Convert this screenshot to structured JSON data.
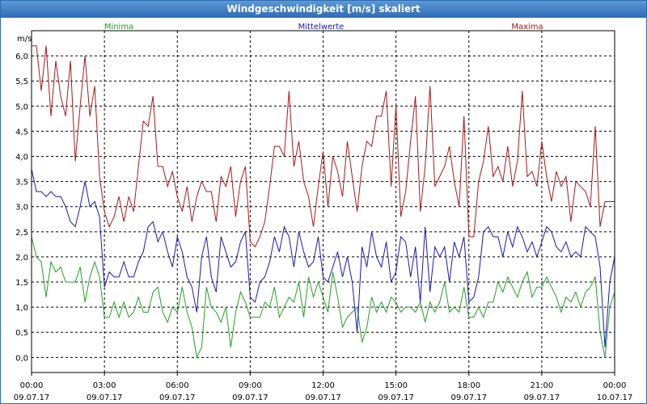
{
  "chart_data": {
    "type": "line",
    "title": "Windgeschwindigkeit [m/s] skaliert",
    "ylabel": "m/s",
    "ylim": [
      -0.3,
      6.5
    ],
    "grid": true,
    "y_ticks": [
      "0,0",
      "0,5",
      "1,0",
      "1,5",
      "2,0",
      "2,5",
      "3,0",
      "3,5",
      "4,0",
      "4,5",
      "5,0",
      "5,5",
      "6,0"
    ],
    "y_tick_values": [
      0.0,
      0.5,
      1.0,
      1.5,
      2.0,
      2.5,
      3.0,
      3.5,
      4.0,
      4.5,
      5.0,
      5.5,
      6.0
    ],
    "x_ticks_time": [
      "00:00",
      "03:00",
      "06:00",
      "09:00",
      "12:00",
      "15:00",
      "18:00",
      "21:00",
      "00:00"
    ],
    "x_ticks_date": [
      "09.07.17",
      "09.07.17",
      "09.07.17",
      "09.07.17",
      "09.07.17",
      "09.07.17",
      "09.07.17",
      "09.07.17",
      "10.07.17"
    ],
    "x_tick_hours": [
      0,
      3,
      6,
      9,
      12,
      15,
      18,
      21,
      24
    ],
    "xlim_hours": [
      0,
      24
    ],
    "series": [
      {
        "name": "Minima",
        "color": "#22a022",
        "hours": [
          0.0,
          0.2,
          0.4,
          0.6,
          0.8,
          1.0,
          1.2,
          1.4,
          1.6,
          1.8,
          2.0,
          2.2,
          2.4,
          2.6,
          2.8,
          3.0,
          3.2,
          3.4,
          3.6,
          3.8,
          4.0,
          4.2,
          4.4,
          4.6,
          4.8,
          5.0,
          5.2,
          5.4,
          5.6,
          5.8,
          6.0,
          6.2,
          6.4,
          6.6,
          6.8,
          7.0,
          7.2,
          7.4,
          7.6,
          7.8,
          8.0,
          8.2,
          8.4,
          8.6,
          8.8,
          9.0,
          9.2,
          9.4,
          9.6,
          9.8,
          10.0,
          10.2,
          10.4,
          10.6,
          10.8,
          11.0,
          11.2,
          11.4,
          11.6,
          11.8,
          12.0,
          12.2,
          12.4,
          12.6,
          12.8,
          13.0,
          13.2,
          13.4,
          13.6,
          13.8,
          14.0,
          14.2,
          14.4,
          14.6,
          14.8,
          15.0,
          15.2,
          15.4,
          15.6,
          15.8,
          16.0,
          16.2,
          16.4,
          16.6,
          16.8,
          17.0,
          17.2,
          17.4,
          17.6,
          17.8,
          18.0,
          18.2,
          18.4,
          18.6,
          18.8,
          19.0,
          19.2,
          19.4,
          19.6,
          19.8,
          20.0,
          20.2,
          20.4,
          20.6,
          20.8,
          21.0,
          21.2,
          21.4,
          21.6,
          21.8,
          22.0,
          22.2,
          22.4,
          22.6,
          22.8,
          23.0,
          23.2,
          23.4,
          23.6,
          23.8,
          24.0
        ],
        "values": [
          2.4,
          2.0,
          1.9,
          1.2,
          1.9,
          1.7,
          1.8,
          1.5,
          1.5,
          1.5,
          1.8,
          1.1,
          1.6,
          1.9,
          1.6,
          0.8,
          0.8,
          1.1,
          0.8,
          1.1,
          0.8,
          0.9,
          1.2,
          0.9,
          0.9,
          1.3,
          1.4,
          0.9,
          0.7,
          1.0,
          0.9,
          1.4,
          0.9,
          0.6,
          0.0,
          0.2,
          1.4,
          1.0,
          0.9,
          0.7,
          1.0,
          0.2,
          0.9,
          1.3,
          1.1,
          0.8,
          0.8,
          0.8,
          1.1,
          1.0,
          1.4,
          0.8,
          1.0,
          1.2,
          1.1,
          1.5,
          0.8,
          1.6,
          1.2,
          1.5,
          1.2,
          0.9,
          1.7,
          1.2,
          0.6,
          0.8,
          0.9,
          1.0,
          0.3,
          0.6,
          1.2,
          0.9,
          1.1,
          0.9,
          1.2,
          1.1,
          0.9,
          1.0,
          1.0,
          0.9,
          1.1,
          0.7,
          1.1,
          0.9,
          1.1,
          1.5,
          0.9,
          1.0,
          0.9,
          1.4,
          0.8,
          0.8,
          1.0,
          0.8,
          1.1,
          1.1,
          1.5,
          1.3,
          1.6,
          1.4,
          1.2,
          1.5,
          1.7,
          1.2,
          1.4,
          1.4,
          1.6,
          1.4,
          1.2,
          0.9,
          1.2,
          1.1,
          1.3,
          1.0,
          1.3,
          1.4,
          1.6,
          0.5,
          0.0,
          1.0,
          1.3
        ]
      },
      {
        "name": "Mittelwerte",
        "color": "#1818b0",
        "hours": [
          0.0,
          0.2,
          0.4,
          0.6,
          0.8,
          1.0,
          1.2,
          1.4,
          1.6,
          1.8,
          2.0,
          2.2,
          2.4,
          2.6,
          2.8,
          3.0,
          3.2,
          3.4,
          3.6,
          3.8,
          4.0,
          4.2,
          4.4,
          4.6,
          4.8,
          5.0,
          5.2,
          5.4,
          5.6,
          5.8,
          6.0,
          6.2,
          6.4,
          6.6,
          6.8,
          7.0,
          7.2,
          7.4,
          7.6,
          7.8,
          8.0,
          8.2,
          8.4,
          8.6,
          8.8,
          9.0,
          9.2,
          9.4,
          9.6,
          9.8,
          10.0,
          10.2,
          10.4,
          10.6,
          10.8,
          11.0,
          11.2,
          11.4,
          11.6,
          11.8,
          12.0,
          12.2,
          12.4,
          12.6,
          12.8,
          13.0,
          13.2,
          13.4,
          13.6,
          13.8,
          14.0,
          14.2,
          14.4,
          14.6,
          14.8,
          15.0,
          15.2,
          15.4,
          15.6,
          15.8,
          16.0,
          16.2,
          16.4,
          16.6,
          16.8,
          17.0,
          17.2,
          17.4,
          17.6,
          17.8,
          18.0,
          18.2,
          18.4,
          18.6,
          18.8,
          19.0,
          19.2,
          19.4,
          19.6,
          19.8,
          20.0,
          20.2,
          20.4,
          20.6,
          20.8,
          21.0,
          21.2,
          21.4,
          21.6,
          21.8,
          22.0,
          22.2,
          22.4,
          22.6,
          22.8,
          23.0,
          23.2,
          23.4,
          23.6,
          23.8,
          24.0
        ],
        "values": [
          3.75,
          3.3,
          3.3,
          3.2,
          3.3,
          3.2,
          3.2,
          3.0,
          2.7,
          2.6,
          3.0,
          3.5,
          3.0,
          3.1,
          2.8,
          1.4,
          1.7,
          1.6,
          1.6,
          1.9,
          1.6,
          1.6,
          1.9,
          2.1,
          2.6,
          2.7,
          2.3,
          2.5,
          2.1,
          1.8,
          2.4,
          2.1,
          1.6,
          1.4,
          0.9,
          2.0,
          2.4,
          1.6,
          1.3,
          2.4,
          2.1,
          1.8,
          1.9,
          2.3,
          2.5,
          1.2,
          1.1,
          1.5,
          1.6,
          1.9,
          2.4,
          2.1,
          2.6,
          2.4,
          1.8,
          2.5,
          2.1,
          1.8,
          1.9,
          2.4,
          1.6,
          1.5,
          1.8,
          2.1,
          1.6,
          2.0,
          1.5,
          0.5,
          2.2,
          1.8,
          2.5,
          2.0,
          1.8,
          2.3,
          1.5,
          1.7,
          2.4,
          2.3,
          1.6,
          2.2,
          1.1,
          2.6,
          1.3,
          2.2,
          2.0,
          2.2,
          1.5,
          2.3,
          2.0,
          2.4,
          1.1,
          1.2,
          1.6,
          2.5,
          2.6,
          2.4,
          2.4,
          2.0,
          2.5,
          2.2,
          2.6,
          2.4,
          2.1,
          2.3,
          2.0,
          2.3,
          2.6,
          2.5,
          2.2,
          2.1,
          2.3,
          2.0,
          2.1,
          2.0,
          2.6,
          2.5,
          2.4,
          1.8,
          0.2,
          1.5,
          2.0
        ]
      },
      {
        "name": "Maxima",
        "color": "#aa1818",
        "hours": [
          0.0,
          0.2,
          0.4,
          0.6,
          0.8,
          1.0,
          1.2,
          1.4,
          1.6,
          1.8,
          2.0,
          2.2,
          2.4,
          2.6,
          2.8,
          3.0,
          3.2,
          3.4,
          3.6,
          3.8,
          4.0,
          4.2,
          4.4,
          4.6,
          4.8,
          5.0,
          5.2,
          5.4,
          5.6,
          5.8,
          6.0,
          6.2,
          6.4,
          6.6,
          6.8,
          7.0,
          7.2,
          7.4,
          7.6,
          7.8,
          8.0,
          8.2,
          8.4,
          8.6,
          8.8,
          9.0,
          9.2,
          9.4,
          9.6,
          9.8,
          10.0,
          10.2,
          10.4,
          10.6,
          10.8,
          11.0,
          11.2,
          11.4,
          11.6,
          11.8,
          12.0,
          12.2,
          12.4,
          12.6,
          12.8,
          13.0,
          13.2,
          13.4,
          13.6,
          13.8,
          14.0,
          14.2,
          14.4,
          14.6,
          14.8,
          15.0,
          15.2,
          15.4,
          15.6,
          15.8,
          16.0,
          16.2,
          16.4,
          16.6,
          16.8,
          17.0,
          17.2,
          17.4,
          17.6,
          17.8,
          18.0,
          18.2,
          18.4,
          18.6,
          18.8,
          19.0,
          19.2,
          19.4,
          19.6,
          19.8,
          20.0,
          20.2,
          20.4,
          20.6,
          20.8,
          21.0,
          21.2,
          21.4,
          21.6,
          21.8,
          22.0,
          22.2,
          22.4,
          22.6,
          22.8,
          23.0,
          23.2,
          23.4,
          23.6,
          23.8,
          24.0
        ],
        "values": [
          6.2,
          6.2,
          5.3,
          6.2,
          4.8,
          5.9,
          5.2,
          4.8,
          5.9,
          3.9,
          5.0,
          6.0,
          4.8,
          5.4,
          3.6,
          2.9,
          2.6,
          2.8,
          3.2,
          2.7,
          3.2,
          2.9,
          3.8,
          4.7,
          4.6,
          5.2,
          3.8,
          3.8,
          3.4,
          3.7,
          3.2,
          2.9,
          3.4,
          2.7,
          3.2,
          3.5,
          3.3,
          3.3,
          2.7,
          3.6,
          3.4,
          3.8,
          2.8,
          3.5,
          3.8,
          2.3,
          2.2,
          2.4,
          2.7,
          3.4,
          4.2,
          4.2,
          4.0,
          5.3,
          3.8,
          4.3,
          3.5,
          3.2,
          2.6,
          3.4,
          4.1,
          3.0,
          4.0,
          3.7,
          3.2,
          4.3,
          3.6,
          2.9,
          3.8,
          4.3,
          4.2,
          4.8,
          4.8,
          5.3,
          3.4,
          5.0,
          2.8,
          3.3,
          4.3,
          5.2,
          2.9,
          3.8,
          5.4,
          3.4,
          3.6,
          3.8,
          4.2,
          3.5,
          3.0,
          4.8,
          2.4,
          2.4,
          3.5,
          3.9,
          4.6,
          3.6,
          3.8,
          3.5,
          4.2,
          3.4,
          3.9,
          5.3,
          3.6,
          3.7,
          3.4,
          4.3,
          3.6,
          3.1,
          3.7,
          3.4,
          3.6,
          2.7,
          3.5,
          3.4,
          3.3,
          3.0,
          4.6,
          2.6,
          3.1,
          3.1,
          3.1
        ]
      }
    ]
  }
}
